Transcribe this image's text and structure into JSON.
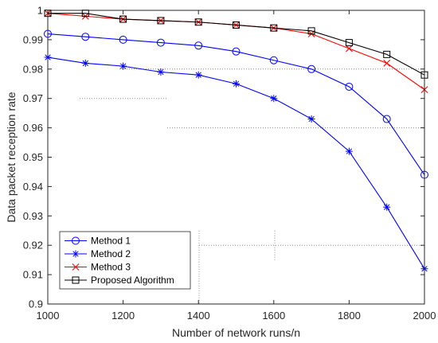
{
  "chart_data": {
    "type": "line",
    "title": "",
    "xlabel": "Number of network runs/n",
    "ylabel": "Data packet reception rate",
    "xlim": [
      1000,
      2000
    ],
    "ylim": [
      0.9,
      1.0
    ],
    "x_ticks": [
      "1000",
      "1200",
      "1400",
      "1600",
      "1800",
      "2000"
    ],
    "y_ticks": [
      "0.9",
      "0.91",
      "0.92",
      "0.93",
      "0.94",
      "0.95",
      "0.96",
      "0.97",
      "0.98",
      "0.99",
      "1"
    ],
    "grid": false,
    "legend_position": "bottom-left",
    "x": [
      1000,
      1100,
      1200,
      1300,
      1400,
      1500,
      1600,
      1700,
      1800,
      1900,
      2000
    ],
    "series": [
      {
        "name": "Method 1",
        "color": "#0000ff",
        "marker": "circle",
        "values": [
          0.992,
          0.991,
          0.99,
          0.989,
          0.988,
          0.986,
          0.983,
          0.98,
          0.974,
          0.963,
          0.944
        ]
      },
      {
        "name": "Method 2",
        "color": "#0000ff",
        "marker": "asterisk",
        "values": [
          0.984,
          0.982,
          0.981,
          0.979,
          0.978,
          0.975,
          0.97,
          0.963,
          0.952,
          0.933,
          0.912
        ]
      },
      {
        "name": "Method 3",
        "color": "#ff0000",
        "marker": "x",
        "values": [
          0.999,
          0.998,
          0.997,
          0.9965,
          0.996,
          0.995,
          0.994,
          0.992,
          0.987,
          0.982,
          0.973
        ]
      },
      {
        "name": "Proposed Algorithm",
        "color": "#000000",
        "marker": "square",
        "values": [
          0.999,
          0.999,
          0.997,
          0.9965,
          0.996,
          0.995,
          0.994,
          0.993,
          0.989,
          0.985,
          0.978
        ]
      }
    ]
  }
}
